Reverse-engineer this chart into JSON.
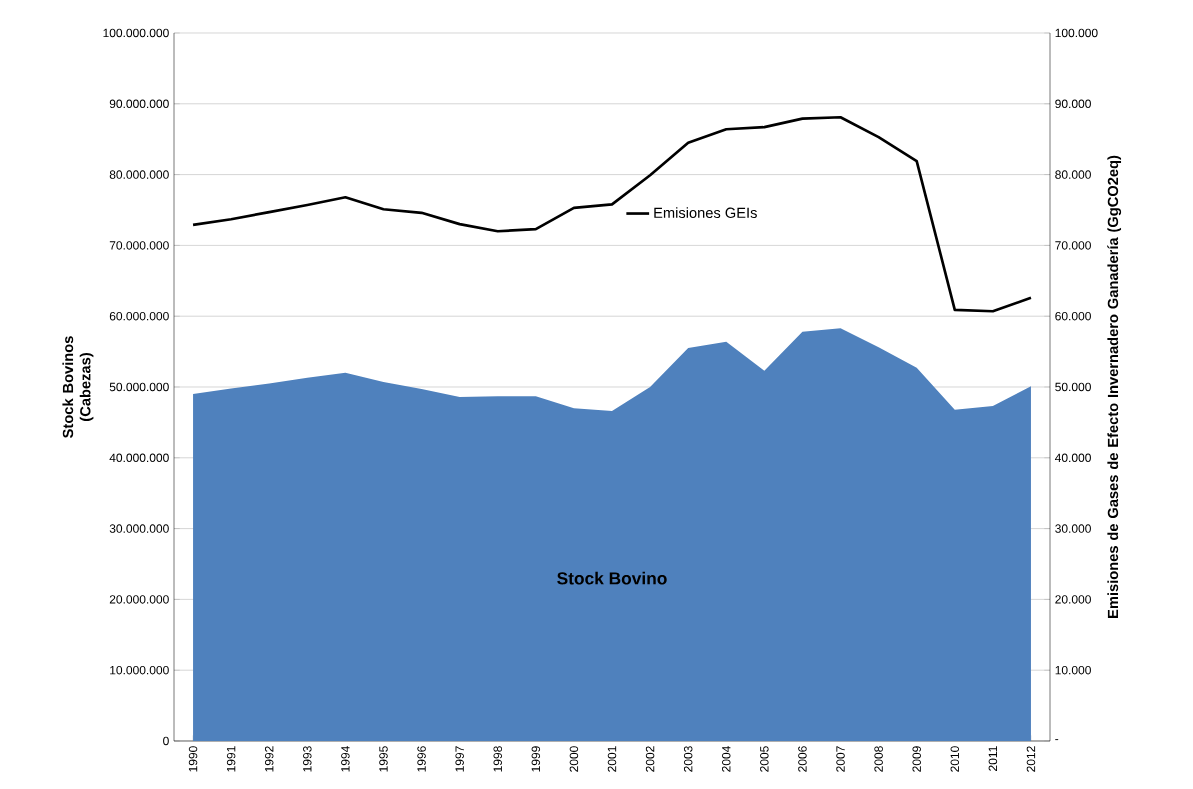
{
  "chart_data": {
    "type": "area",
    "categories": [
      "1990",
      "1991",
      "1992",
      "1993",
      "1994",
      "1995",
      "1996",
      "1997",
      "1998",
      "1999",
      "2000",
      "2001",
      "2002",
      "2003",
      "2004",
      "2005",
      "2006",
      "2007",
      "2008",
      "2009",
      "2010",
      "2011",
      "2012"
    ],
    "series": [
      {
        "name": "Stock Bovino",
        "color": "#4f81bd",
        "values": [
          49000000,
          49800000,
          50500000,
          51300000,
          52000000,
          50700000,
          49700000,
          48600000,
          48700000,
          48700000,
          47000000,
          46600000,
          50000000,
          55500000,
          56400000,
          52300000,
          57800000,
          58300000,
          55600000,
          52700000,
          46800000,
          47300000,
          50100000
        ]
      },
      {
        "name": "Emisiones GEIs",
        "type": "line",
        "axis": "y2",
        "color": "#000000",
        "values": [
          72900,
          73700,
          74700,
          75700,
          76800,
          75100,
          74600,
          73000,
          72000,
          72300,
          75300,
          75800,
          79900,
          84500,
          86400,
          86700,
          87900,
          88100,
          85300,
          81900,
          60900,
          60700,
          62600
        ]
      }
    ],
    "ylabel": "Stock Bovinos (Cabezas)",
    "y2label": "Emisiones de Gases de Efecto Invernadero Ganadería (GgCO2eq)",
    "ylim": [
      0,
      100000000
    ],
    "yticks": [
      {
        "value": 0,
        "label": "0"
      },
      {
        "value": 10000000,
        "label": "10.000.000"
      },
      {
        "value": 20000000,
        "label": "20.000.000"
      },
      {
        "value": 30000000,
        "label": "30.000.000"
      },
      {
        "value": 40000000,
        "label": "40.000.000"
      },
      {
        "value": 50000000,
        "label": "50.000.000"
      },
      {
        "value": 60000000,
        "label": "60.000.000"
      },
      {
        "value": 70000000,
        "label": "70.000.000"
      },
      {
        "value": 80000000,
        "label": "80.000.000"
      },
      {
        "value": 90000000,
        "label": "90.000.000"
      },
      {
        "value": 100000000,
        "label": "100.000.000"
      }
    ],
    "y2lim": [
      0,
      100000
    ],
    "y2ticks": [
      {
        "value": 0,
        "label": "-"
      },
      {
        "value": 10000,
        "label": "10.000"
      },
      {
        "value": 20000,
        "label": "20.000"
      },
      {
        "value": 30000,
        "label": "30.000"
      },
      {
        "value": 40000,
        "label": "40.000"
      },
      {
        "value": 50000,
        "label": "50.000"
      },
      {
        "value": 60000,
        "label": "60.000"
      },
      {
        "value": 70000,
        "label": "70.000"
      },
      {
        "value": 80000,
        "label": "80.000"
      },
      {
        "value": 90000,
        "label": "90.000"
      },
      {
        "value": 100000,
        "label": "100.000"
      }
    ],
    "grid": "y",
    "legend": "top"
  }
}
